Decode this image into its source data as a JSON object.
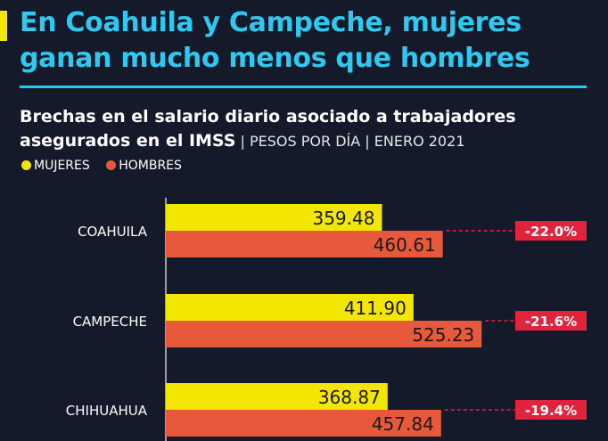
{
  "header": {
    "title_line1": "En Coahuila y Campeche, mujeres",
    "title_line2": "ganan mucho menos que hombres",
    "subtitle_line1": "Brechas en el salario diario asociado a trabajadores",
    "subtitle_line2_bold": "asegurados en el IMSS",
    "subtitle_line2_light": " | PESOS POR DÍA | ENERO 2021"
  },
  "colors": {
    "mujeres": "#f3e600",
    "hombres": "#e8583a",
    "title": "#2ec8f0",
    "gap_badge": "#e2233c",
    "background": "#151a2b"
  },
  "chart_data": {
    "type": "bar",
    "orientation": "horizontal",
    "categories": [
      "COAHUILA",
      "CAMPECHE",
      "CHIHUAHUA"
    ],
    "series": [
      {
        "name": "MUJERES",
        "values": [
          359.48,
          411.9,
          368.87
        ],
        "labels": [
          "359.48",
          "411.90",
          "368.87"
        ]
      },
      {
        "name": "HOMBRES",
        "values": [
          460.61,
          525.23,
          457.84
        ],
        "labels": [
          "460.61",
          "525.23",
          "457.84"
        ]
      }
    ],
    "gaps": [
      "-22.0%",
      "-21.6%",
      "-19.4%"
    ],
    "legend": "top-left"
  }
}
